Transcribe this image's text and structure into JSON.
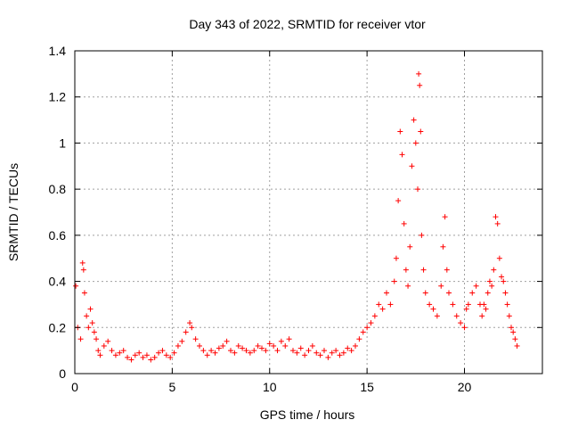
{
  "chart_data": {
    "type": "scatter",
    "title": "Day 343 of 2022, SRMTID for receiver vtor",
    "xlabel": "GPS time / hours",
    "ylabel": "SRMTID / TECUs",
    "xlim": [
      0,
      24
    ],
    "ylim": [
      0,
      1.4
    ],
    "x_ticks": [
      0,
      5,
      10,
      15,
      20
    ],
    "x_tick_labels": [
      "0",
      "5",
      "10",
      "15",
      "20"
    ],
    "y_ticks": [
      0,
      0.2,
      0.4,
      0.6,
      0.8,
      1.0,
      1.2,
      1.4
    ],
    "y_tick_labels": [
      "0",
      "0.2",
      "0.4",
      "0.6",
      "0.8",
      "1",
      "1.2",
      "1.4"
    ],
    "grid": true,
    "marker": "+",
    "color": "#ff0000",
    "series": [
      {
        "name": "SRMTID",
        "x": [
          0.05,
          0.15,
          0.3,
          0.4,
          0.45,
          0.5,
          0.6,
          0.7,
          0.8,
          0.9,
          1.0,
          1.1,
          1.2,
          1.3,
          1.5,
          1.7,
          1.9,
          2.1,
          2.3,
          2.5,
          2.7,
          2.9,
          3.1,
          3.3,
          3.5,
          3.7,
          3.9,
          4.1,
          4.3,
          4.5,
          4.7,
          4.9,
          5.1,
          5.3,
          5.5,
          5.7,
          5.9,
          6.0,
          6.2,
          6.4,
          6.6,
          6.8,
          7.0,
          7.2,
          7.4,
          7.6,
          7.8,
          8.0,
          8.2,
          8.4,
          8.6,
          8.8,
          9.0,
          9.2,
          9.4,
          9.6,
          9.8,
          10.0,
          10.2,
          10.4,
          10.6,
          10.8,
          11.0,
          11.2,
          11.4,
          11.6,
          11.8,
          12.0,
          12.2,
          12.4,
          12.6,
          12.8,
          13.0,
          13.2,
          13.4,
          13.6,
          13.8,
          14.0,
          14.2,
          14.4,
          14.6,
          14.8,
          15.0,
          15.2,
          15.4,
          15.6,
          15.8,
          16.0,
          16.2,
          16.4,
          16.5,
          16.6,
          16.7,
          16.8,
          16.9,
          17.0,
          17.1,
          17.2,
          17.3,
          17.4,
          17.5,
          17.6,
          17.65,
          17.7,
          17.75,
          17.8,
          17.9,
          18.0,
          18.2,
          18.4,
          18.6,
          18.8,
          18.9,
          19.0,
          19.1,
          19.2,
          19.4,
          19.6,
          19.8,
          20.0,
          20.1,
          20.2,
          20.4,
          20.6,
          20.8,
          20.9,
          21.0,
          21.1,
          21.2,
          21.3,
          21.4,
          21.5,
          21.6,
          21.7,
          21.8,
          21.9,
          22.0,
          22.1,
          22.2,
          22.3,
          22.4,
          22.5,
          22.6,
          22.7
        ],
        "y": [
          0.38,
          0.2,
          0.15,
          0.48,
          0.45,
          0.35,
          0.25,
          0.2,
          0.28,
          0.22,
          0.18,
          0.15,
          0.1,
          0.08,
          0.12,
          0.14,
          0.1,
          0.08,
          0.09,
          0.1,
          0.07,
          0.06,
          0.08,
          0.09,
          0.07,
          0.08,
          0.06,
          0.07,
          0.09,
          0.1,
          0.08,
          0.07,
          0.09,
          0.12,
          0.14,
          0.18,
          0.22,
          0.2,
          0.15,
          0.12,
          0.1,
          0.08,
          0.1,
          0.09,
          0.11,
          0.12,
          0.14,
          0.1,
          0.09,
          0.12,
          0.11,
          0.1,
          0.09,
          0.1,
          0.12,
          0.11,
          0.1,
          0.13,
          0.12,
          0.1,
          0.14,
          0.12,
          0.15,
          0.1,
          0.09,
          0.11,
          0.08,
          0.1,
          0.12,
          0.09,
          0.08,
          0.1,
          0.07,
          0.09,
          0.1,
          0.08,
          0.09,
          0.11,
          0.1,
          0.12,
          0.15,
          0.18,
          0.2,
          0.22,
          0.25,
          0.3,
          0.28,
          0.35,
          0.3,
          0.4,
          0.5,
          0.75,
          1.05,
          0.95,
          0.65,
          0.45,
          0.38,
          0.55,
          0.9,
          1.1,
          1.0,
          0.8,
          1.3,
          1.25,
          1.05,
          0.6,
          0.45,
          0.35,
          0.3,
          0.28,
          0.25,
          0.38,
          0.55,
          0.68,
          0.45,
          0.35,
          0.3,
          0.25,
          0.22,
          0.2,
          0.28,
          0.3,
          0.35,
          0.38,
          0.3,
          0.25,
          0.3,
          0.28,
          0.35,
          0.4,
          0.38,
          0.45,
          0.68,
          0.65,
          0.5,
          0.42,
          0.4,
          0.35,
          0.3,
          0.25,
          0.2,
          0.18,
          0.15,
          0.12
        ]
      }
    ]
  }
}
